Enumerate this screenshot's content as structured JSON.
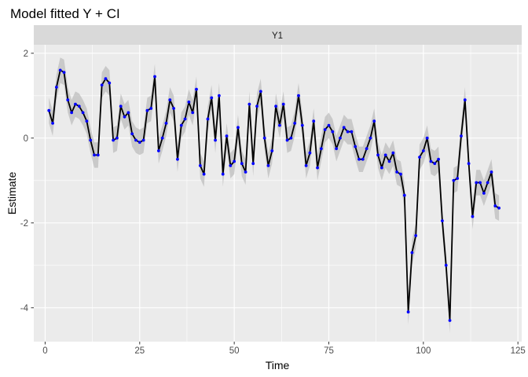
{
  "colors": {
    "panel_bg": "#ebebeb",
    "strip_bg": "#d9d9d9",
    "grid_major": "#ffffff",
    "line": "#000000",
    "ribbon": "#bebebe",
    "point": "#0000ff"
  },
  "chart_data": {
    "type": "line",
    "title": "Model fitted Y + CI",
    "facet": "Y1",
    "xlabel": "Time",
    "ylabel": "Estimate",
    "xlim": [
      -3,
      126
    ],
    "ylim": [
      -4.8,
      2.2
    ],
    "x_ticks": [
      0,
      25,
      50,
      75,
      100,
      125
    ],
    "y_ticks": [
      -4,
      -2,
      0,
      2
    ],
    "grid": true,
    "ci_halfwidth": 0.3,
    "x": [
      1,
      2,
      3,
      4,
      5,
      6,
      7,
      8,
      9,
      10,
      11,
      12,
      13,
      14,
      15,
      16,
      17,
      18,
      19,
      20,
      21,
      22,
      23,
      24,
      25,
      26,
      27,
      28,
      29,
      30,
      31,
      32,
      33,
      34,
      35,
      36,
      37,
      38,
      39,
      40,
      41,
      42,
      43,
      44,
      45,
      46,
      47,
      48,
      49,
      50,
      51,
      52,
      53,
      54,
      55,
      56,
      57,
      58,
      59,
      60,
      61,
      62,
      63,
      64,
      65,
      66,
      67,
      68,
      69,
      70,
      71,
      72,
      73,
      74,
      75,
      76,
      77,
      78,
      79,
      80,
      81,
      82,
      83,
      84,
      85,
      86,
      87,
      88,
      89,
      90,
      91,
      92,
      93,
      94,
      95,
      96,
      97,
      98,
      99,
      100,
      101,
      102,
      103,
      104,
      105,
      106,
      107,
      108,
      109,
      110,
      111,
      112,
      113,
      114,
      115,
      116,
      117,
      118,
      119,
      120
    ],
    "series": [
      {
        "values": [
          0.65,
          0.35,
          1.2,
          1.6,
          1.55,
          0.9,
          0.6,
          0.8,
          0.75,
          0.6,
          0.4,
          -0.05,
          -0.4,
          -0.4,
          1.25,
          1.4,
          1.3,
          -0.05,
          0.0,
          0.75,
          0.5,
          0.6,
          0.1,
          -0.05,
          -0.1,
          -0.05,
          0.65,
          0.7,
          1.45,
          -0.3,
          0.0,
          0.35,
          0.9,
          0.7,
          -0.5,
          0.3,
          0.45,
          0.85,
          0.6,
          1.15,
          -0.65,
          -0.85,
          0.45,
          0.95,
          -0.05,
          1.0,
          -0.85,
          0.05,
          -0.65,
          -0.55,
          0.25,
          -0.6,
          -0.8,
          0.8,
          -0.6,
          0.75,
          1.1,
          0.0,
          -0.65,
          -0.3,
          0.75,
          0.3,
          0.8,
          -0.05,
          0.0,
          0.35,
          1.0,
          0.3,
          -0.65,
          -0.35,
          0.4,
          -0.7,
          -0.25,
          0.2,
          0.3,
          0.15,
          -0.25,
          0.0,
          0.25,
          0.15,
          0.15,
          -0.2,
          -0.5,
          -0.5,
          -0.25,
          0.0,
          0.4,
          -0.4,
          -0.7,
          -0.4,
          -0.55,
          -0.35,
          -0.8,
          -0.85,
          -1.35,
          -4.1,
          -2.7,
          -2.3,
          -0.45,
          -0.3,
          0.0,
          -0.55,
          -0.6,
          -0.5,
          -1.95,
          -3.0,
          -4.3,
          -1.0,
          -0.95,
          0.05,
          0.9,
          -0.6,
          -1.85,
          -1.05,
          -1.05,
          -1.3,
          -1.05,
          -0.8,
          -1.6,
          -1.65
        ]
      }
    ]
  }
}
